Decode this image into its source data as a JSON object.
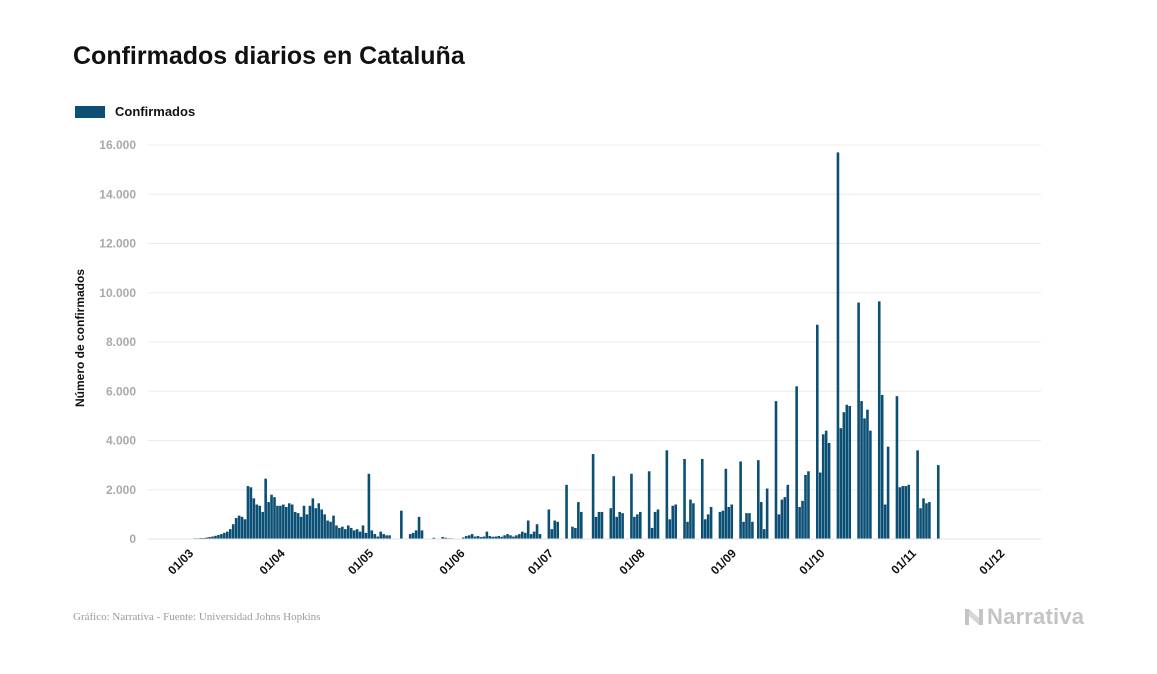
{
  "chart_data": {
    "type": "bar",
    "title": "Confirmados diarios en Cataluña",
    "ylabel": "Número de confirmados",
    "xlabel": "",
    "legend": {
      "placement": "top-left",
      "entries": [
        "Confirmados"
      ]
    },
    "grid": true,
    "ylim": [
      0,
      16000
    ],
    "yticks": [
      0,
      2000,
      4000,
      6000,
      8000,
      10000,
      12000,
      14000,
      16000
    ],
    "ytick_labels": [
      "0",
      "2.000",
      "4.000",
      "6.000",
      "8.000",
      "10.000",
      "12.000",
      "14.000",
      "16.000"
    ],
    "xtick_labels": [
      "01/03",
      "01/04",
      "01/05",
      "01/06",
      "01/07",
      "01/08",
      "01/09",
      "01/10",
      "01/11",
      "01/12"
    ],
    "xtick_day_index": [
      7,
      38,
      68,
      99,
      129,
      160,
      191,
      221,
      252,
      282
    ],
    "start_label": "23/02",
    "series": [
      {
        "name": "Confirmados",
        "color": "#0b4f74",
        "values": [
          0,
          0,
          0,
          0,
          0,
          0,
          0,
          10,
          20,
          30,
          30,
          40,
          40,
          60,
          80,
          100,
          130,
          160,
          200,
          250,
          300,
          400,
          600,
          850,
          950,
          900,
          800,
          2150,
          2100,
          1650,
          1400,
          1350,
          1100,
          2450,
          1500,
          1800,
          1700,
          1350,
          1350,
          1400,
          1300,
          1450,
          1400,
          1100,
          1050,
          900,
          1350,
          1000,
          1350,
          1650,
          1250,
          1450,
          1200,
          1000,
          750,
          700,
          950,
          550,
          450,
          500,
          400,
          550,
          450,
          350,
          400,
          300,
          550,
          250,
          2650,
          350,
          200,
          100,
          300,
          200,
          150,
          150,
          0,
          0,
          0,
          1150,
          0,
          0,
          200,
          250,
          350,
          900,
          350,
          0,
          0,
          0,
          50,
          0,
          0,
          80,
          50,
          30,
          30,
          0,
          0,
          0,
          60,
          120,
          150,
          200,
          100,
          120,
          80,
          100,
          300,
          120,
          90,
          100,
          120,
          90,
          150,
          200,
          150,
          100,
          150,
          200,
          300,
          250,
          750,
          200,
          300,
          600,
          200,
          0,
          0,
          1200,
          400,
          750,
          700,
          0,
          0,
          2200,
          0,
          500,
          450,
          1500,
          1100,
          0,
          0,
          0,
          3450,
          900,
          1100,
          1100,
          0,
          0,
          1250,
          2550,
          900,
          1100,
          1050,
          0,
          0,
          2650,
          900,
          1000,
          1100,
          0,
          0,
          2750,
          450,
          1100,
          1200,
          0,
          0,
          3600,
          800,
          1350,
          1400,
          0,
          0,
          3250,
          700,
          1600,
          1450,
          0,
          0,
          3250,
          800,
          1000,
          1300,
          0,
          0,
          1100,
          1150,
          2850,
          1300,
          1400,
          0,
          0,
          3150,
          700,
          1050,
          1050,
          700,
          0,
          3200,
          1500,
          400,
          2050,
          0,
          0,
          5600,
          1000,
          1600,
          1700,
          2200,
          0,
          0,
          6200,
          1300,
          1550,
          2600,
          2750,
          0,
          0,
          8700,
          2700,
          4250,
          4400,
          3900,
          0,
          0,
          15700,
          4500,
          5150,
          5450,
          5400,
          0,
          0,
          9600,
          5600,
          4900,
          5250,
          4400,
          0,
          0,
          9650,
          5850,
          1400,
          3750,
          0,
          0,
          5800,
          2100,
          2150,
          2150,
          2200,
          0,
          0,
          3600,
          1250,
          1650,
          1450,
          1500,
          0,
          0,
          3000
        ]
      }
    ]
  },
  "footer": {
    "source": "Gráfico: Narrativa - Fuente: Universidad Johns Hopkins",
    "logo_text": "Narrativa"
  },
  "colors": {
    "bar": "#0b4f74",
    "grid": "#ececec",
    "tick_text": "#a9a9a9",
    "logo": "#c4c4c4"
  },
  "icons": {
    "logo": "narrativa-n-icon"
  }
}
